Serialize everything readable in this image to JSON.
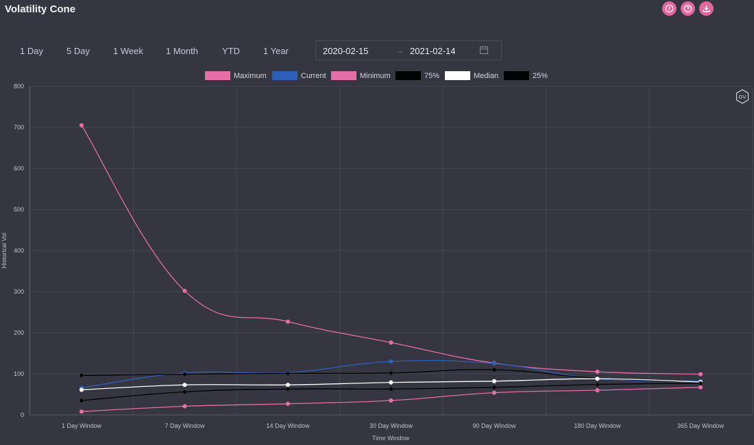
{
  "header": {
    "title": "Volatility Cone"
  },
  "toolbar": {
    "icons": [
      "info-icon",
      "help-icon",
      "download-icon"
    ],
    "accent_color": "#e2679f"
  },
  "range_tabs": [
    "1 Day",
    "5 Day",
    "1 Week",
    "1 Month",
    "YTD",
    "1 Year"
  ],
  "date_range": {
    "start": "2020-02-15",
    "separator": "→",
    "end": "2021-02-14",
    "icon": "calendar-icon"
  },
  "badge": {
    "text": "GV"
  },
  "chart_data": {
    "type": "line",
    "categories": [
      "1 Day Window",
      "7 Day Window",
      "14 Day Window",
      "30 Day Window",
      "90 Day Window",
      "180 Day Window",
      "365 Day Window"
    ],
    "xlabel": "Time Window",
    "ylabel": "Historical Vol",
    "ylim": [
      0,
      800
    ],
    "yticks": [
      0,
      100,
      200,
      300,
      400,
      500,
      600,
      700,
      800
    ],
    "grid": true,
    "legend_position": "top",
    "series": [
      {
        "name": "Maximum",
        "color": "#e36fa6",
        "values": [
          705,
          302,
          227,
          176,
          126,
          105,
          99
        ]
      },
      {
        "name": "Current",
        "color": "#2d5fb8",
        "values": [
          66,
          102,
          103,
          130,
          125,
          88,
          82
        ]
      },
      {
        "name": "Minimum",
        "color": "#e36fa6",
        "values": [
          8,
          21,
          27,
          35,
          54,
          60,
          67
        ]
      },
      {
        "name": "75%",
        "color": "#000000",
        "values": [
          96,
          99,
          101,
          102,
          110,
          89,
          80
        ]
      },
      {
        "name": "Median",
        "color": "#ffffff",
        "values": [
          61,
          73,
          73,
          79,
          82,
          88,
          80
        ]
      },
      {
        "name": "25%",
        "color": "#000000",
        "values": [
          35,
          56,
          63,
          63,
          67,
          74,
          77
        ]
      }
    ]
  }
}
